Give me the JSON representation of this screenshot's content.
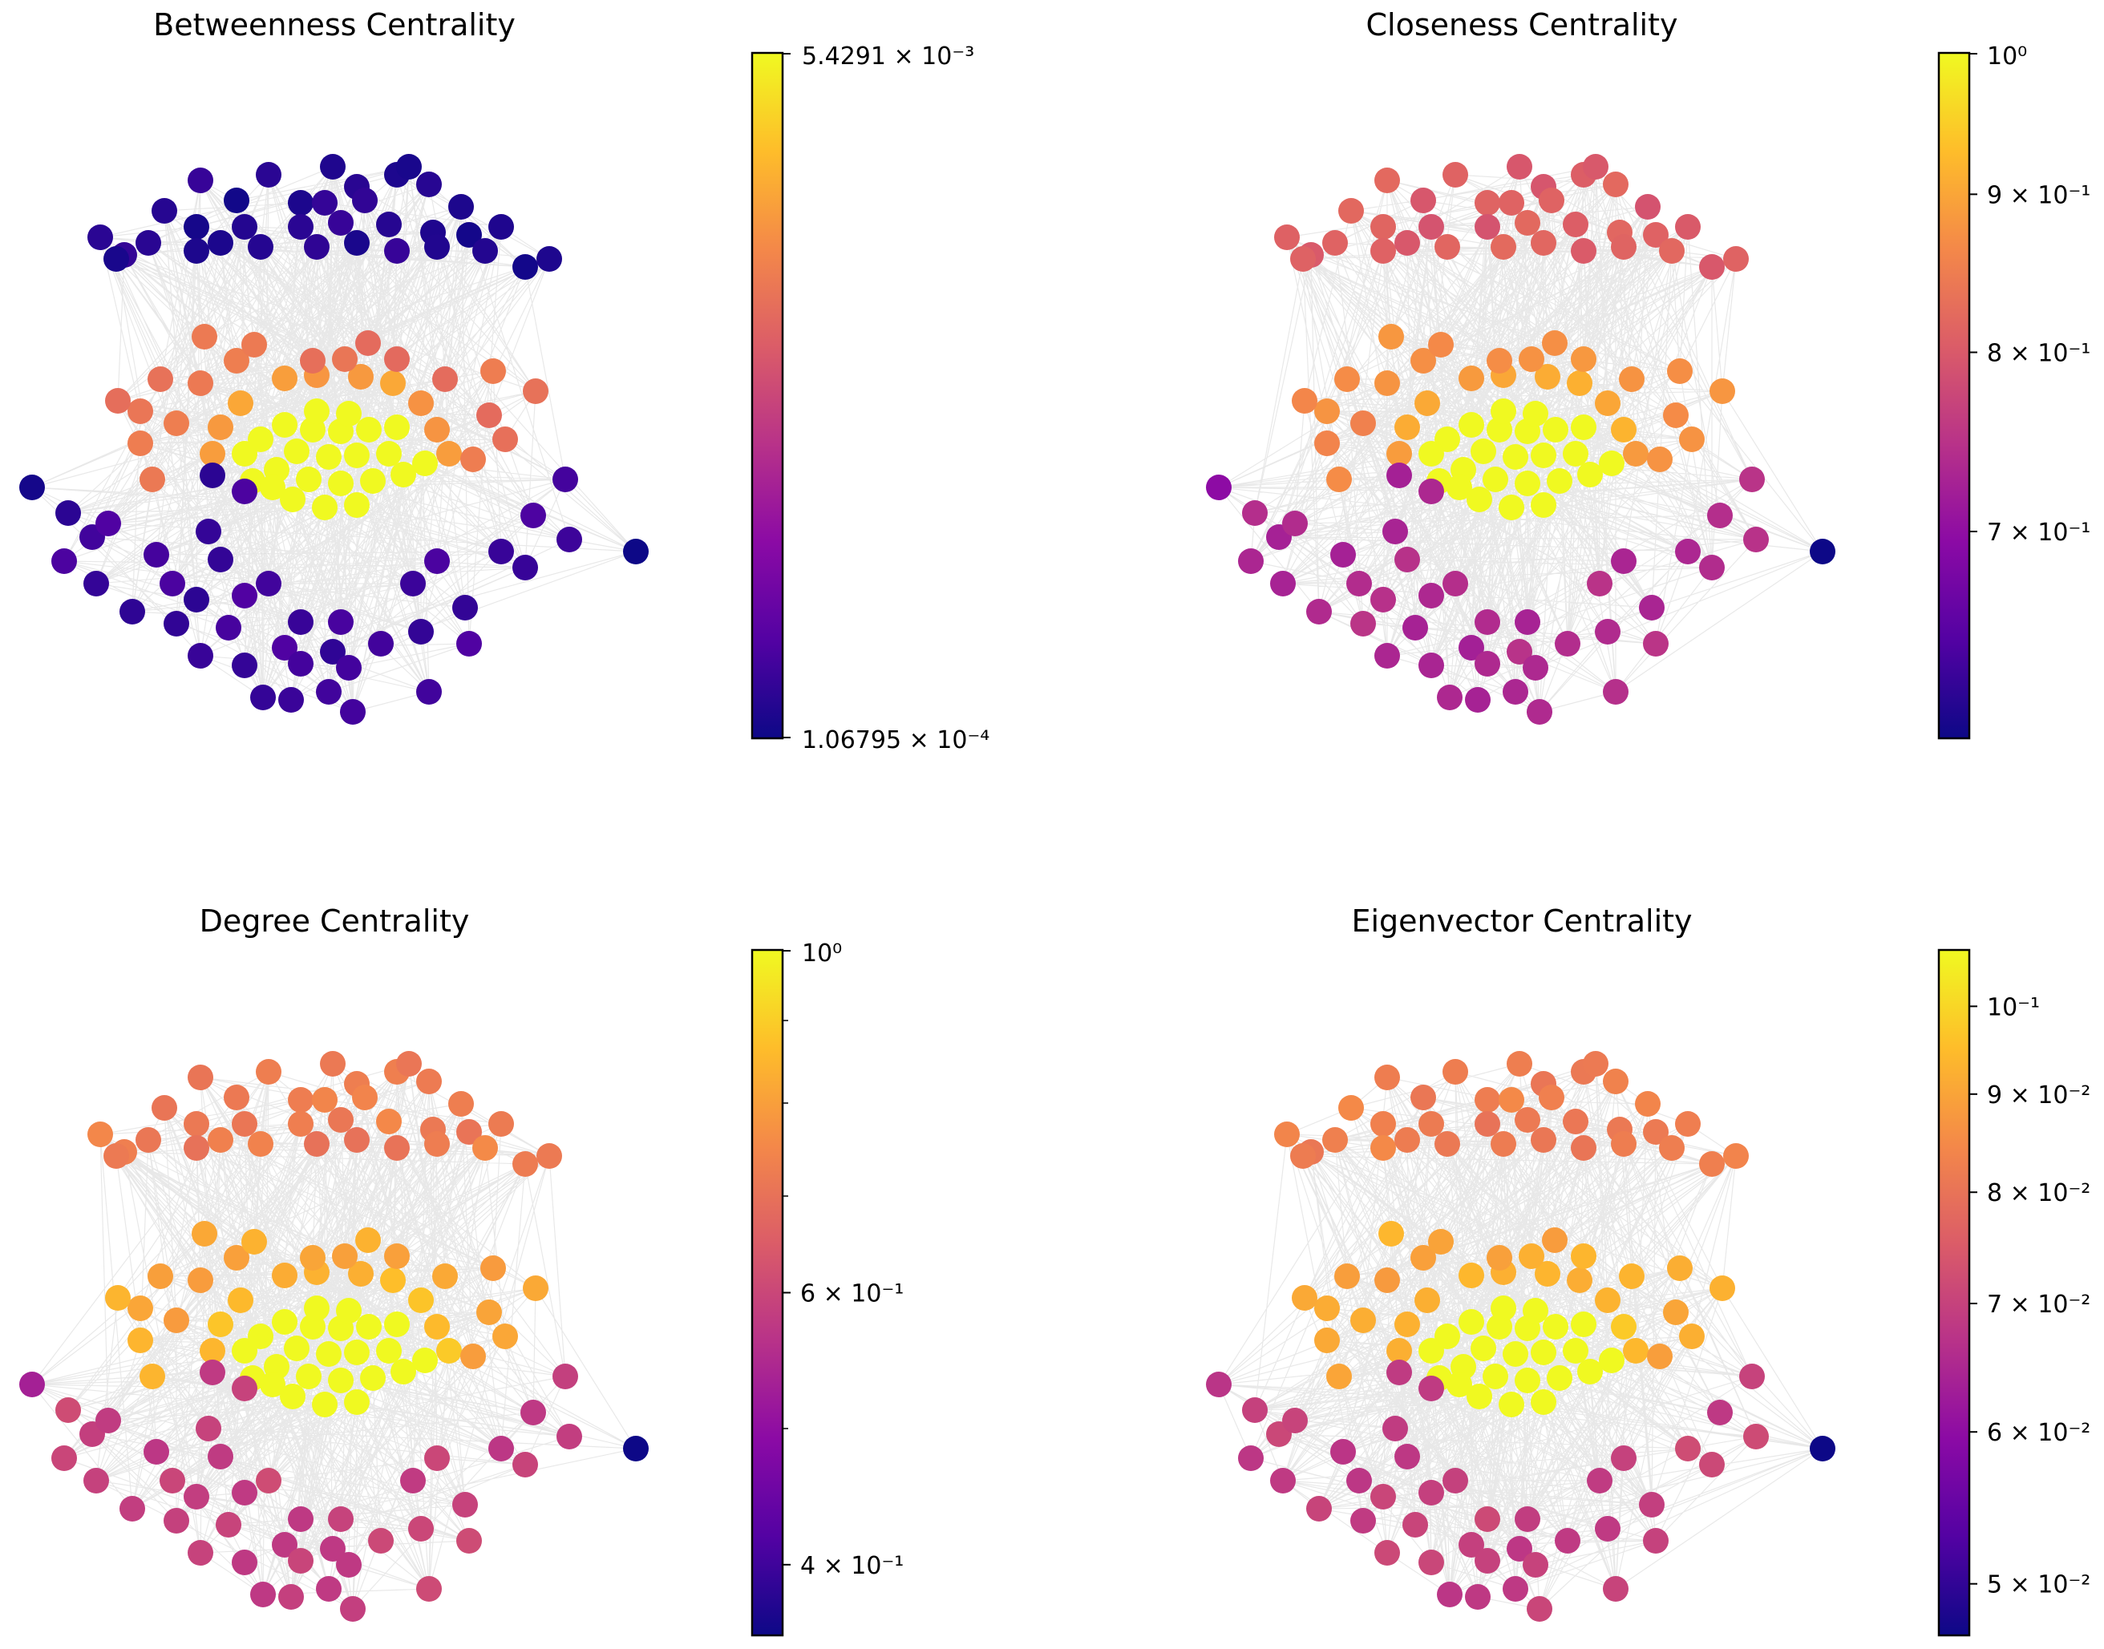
{
  "colors": {
    "colormap": [
      "#0d0887",
      "#5302a3",
      "#8b0aa5",
      "#b83289",
      "#db5c68",
      "#f48849",
      "#febd2a",
      "#f0f921"
    ],
    "edge": "#000000",
    "background": "#ffffff"
  },
  "chart_data": [
    {
      "type": "network",
      "title": "Betweenness Centrality",
      "colorbar": {
        "scale": "log",
        "range": [
          0.000106795,
          0.0054291
        ],
        "top_label": "5.4291 × 10⁻³",
        "bottom_label": "1.06795 × 10⁻⁴",
        "tick_labels": []
      },
      "node_group_values": {
        "outer_top": 0.05,
        "outer_bottom": 0.1,
        "far_left": 0.0,
        "far_right": 0.0,
        "middle_ring": 0.65,
        "inner_ring": 0.78,
        "core": 1.0
      }
    },
    {
      "type": "network",
      "title": "Closeness Centrality",
      "colorbar": {
        "scale": "log",
        "range": [
          0.6,
          1.0
        ],
        "top_label": "10⁰",
        "bottom_label": "",
        "tick_labels": [
          "9 × 10⁻¹",
          "8 × 10⁻¹",
          "7 × 10⁻¹"
        ],
        "tick_values": [
          0.9,
          0.8,
          0.7
        ]
      },
      "node_group_values": {
        "outer_top": 0.58,
        "outer_bottom": 0.4,
        "far_left": 0.33,
        "far_right": 0.0,
        "middle_ring": 0.72,
        "inner_ring": 0.8,
        "core": 1.0
      }
    },
    {
      "type": "network",
      "title": "Degree Centrality",
      "colorbar": {
        "scale": "log",
        "range": [
          0.36,
          1.0
        ],
        "top_label": "10⁰",
        "bottom_label": "",
        "tick_labels": [
          "6 × 10⁻¹",
          "4 × 10⁻¹"
        ],
        "tick_values": [
          0.6,
          0.4
        ]
      },
      "node_group_values": {
        "outer_top": 0.68,
        "outer_bottom": 0.48,
        "far_left": 0.4,
        "far_right": 0.0,
        "middle_ring": 0.8,
        "inner_ring": 0.85,
        "core": 1.0
      }
    },
    {
      "type": "network",
      "title": "Eigenvector Centrality",
      "colorbar": {
        "scale": "log",
        "range": [
          0.047,
          0.107
        ],
        "top_label": "",
        "bottom_label": "",
        "tick_labels": [
          "10⁻¹",
          "9 × 10⁻²",
          "8 × 10⁻²",
          "7 × 10⁻²",
          "6 × 10⁻²",
          "5 × 10⁻²"
        ],
        "tick_values": [
          0.1,
          0.09,
          0.08,
          0.07,
          0.06,
          0.05
        ]
      },
      "node_group_values": {
        "outer_top": 0.68,
        "outer_bottom": 0.48,
        "far_left": 0.4,
        "far_right": 0.0,
        "middle_ring": 0.8,
        "inner_ring": 0.85,
        "core": 1.0
      }
    }
  ]
}
